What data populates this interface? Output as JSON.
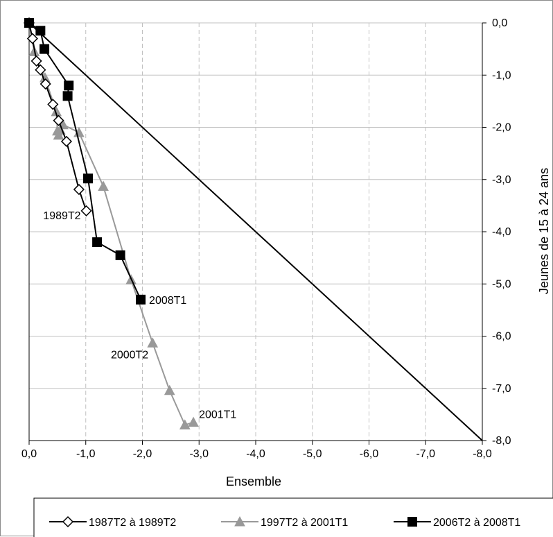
{
  "colors": {
    "background": "#ffffff",
    "series_1": "#000000",
    "series_2": "#999999",
    "series_3": "#000000",
    "diagonal": "#000000",
    "grid": "#c0c0c0"
  },
  "chart_data": {
    "type": "line",
    "title": "",
    "xlabel": "Ensemble",
    "ylabel": "Jeunes de 15 à 24 ans",
    "xlim": [
      0,
      -8
    ],
    "ylim": [
      -8,
      0
    ],
    "x_axis_reversed": true,
    "y_axis_position": "right",
    "grid": "vertical dashed + horizontal solid",
    "x_ticks": [
      "0,0",
      "-1,0",
      "-2,0",
      "-3,0",
      "-4,0",
      "-5,0",
      "-6,0",
      "-7,0",
      "-8,0"
    ],
    "y_ticks": [
      "0,0",
      "-1,0",
      "-2,0",
      "-3,0",
      "-4,0",
      "-5,0",
      "-6,0",
      "-7,0",
      "-8,0"
    ],
    "reference_line": {
      "from": [
        0,
        0
      ],
      "to": [
        -8,
        -8
      ]
    },
    "legend_position": "bottom",
    "series": [
      {
        "name": "1987T2 à 1989T2",
        "marker": "diamond-open",
        "x": [
          0.0,
          -0.06,
          -0.13,
          -0.2,
          -0.29,
          -0.42,
          -0.52,
          -0.66,
          -0.88,
          -1.01
        ],
        "y": [
          0.0,
          -0.3,
          -0.73,
          -0.9,
          -1.17,
          -1.56,
          -1.87,
          -2.27,
          -3.19,
          -3.6
        ]
      },
      {
        "name": "1997T2 à 2001T1",
        "marker": "triangle",
        "x": [
          0.0,
          -0.09,
          -0.28,
          -0.48,
          -0.5,
          -0.52,
          -0.55,
          -0.6,
          -0.88,
          -1.31,
          -1.8,
          -2.18,
          -2.48,
          -2.75,
          -2.9
        ],
        "y": [
          0.0,
          -0.55,
          -1.05,
          -1.7,
          -2.07,
          -2.15,
          -2.05,
          -1.95,
          -2.1,
          -3.13,
          -4.92,
          -6.13,
          -7.04,
          -7.7,
          -7.65
        ]
      },
      {
        "name": "2006T2 à 2008T1",
        "marker": "square",
        "x": [
          0.0,
          -0.2,
          -0.27,
          -0.7,
          -0.68,
          -1.04,
          -1.2,
          -1.61,
          -1.97
        ],
        "y": [
          0.0,
          -0.15,
          -0.5,
          -1.2,
          -1.4,
          -2.98,
          -4.2,
          -4.45,
          -5.3
        ]
      }
    ],
    "annotations": [
      {
        "text": "1989T2",
        "x": -1.01,
        "y": -3.6
      },
      {
        "text": "2000T2",
        "x": -2.18,
        "y": -6.13
      },
      {
        "text": "2001T1",
        "x": -2.9,
        "y": -7.65
      },
      {
        "text": "2008T1",
        "x": -1.97,
        "y": -5.3
      }
    ]
  }
}
